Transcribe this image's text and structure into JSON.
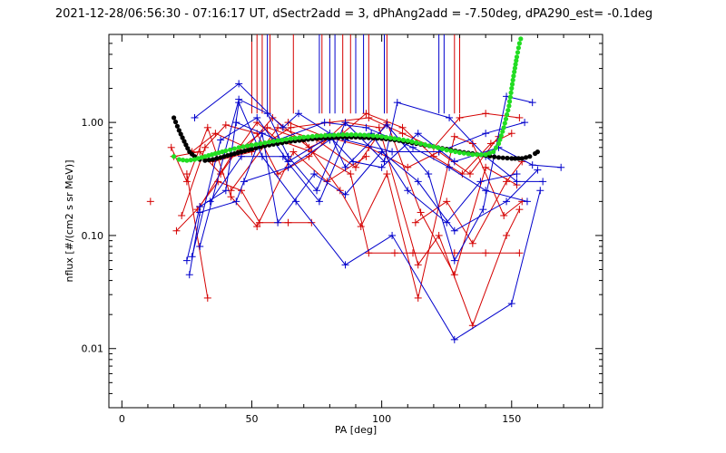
{
  "chart_data": {
    "type": "scatter",
    "title": "2021-12-28/06:56:30 - 07:16:17 UT, dSectr2add = 3, dPhAng2add = -7.50deg, dPA290_est=  -0.1deg",
    "xlabel": "PA [deg]",
    "ylabel": "nflux [#/(cm2 s sr MeV)]",
    "xlim": [
      -5,
      185
    ],
    "ylim": [
      0.003,
      6
    ],
    "yscale": "log",
    "grid": false,
    "x_ticks": [
      0,
      50,
      100,
      150
    ],
    "x_tick_labels": [
      "0",
      "50",
      "100",
      "150"
    ],
    "y_ticks": [
      0.01,
      0.1,
      1.0
    ],
    "y_tick_labels": [
      "0.01",
      "0.10",
      "1.00"
    ],
    "colors": {
      "red": "#d40000",
      "blue": "#0000cc",
      "black": "#000000",
      "green": "#22dd22"
    },
    "series": [
      {
        "color": "red",
        "style": "line",
        "points": [
          [
            19,
            0.6
          ],
          [
            25,
            0.3
          ],
          [
            33,
            0.9
          ],
          [
            42,
            0.22
          ],
          [
            52,
            0.12
          ],
          [
            66,
            0.55
          ],
          [
            79,
            0.3
          ],
          [
            94,
            0.5
          ]
        ]
      },
      {
        "color": "red",
        "style": "line",
        "points": [
          [
            21,
            0.11
          ],
          [
            29,
            0.17
          ],
          [
            37,
            0.3
          ],
          [
            46,
            0.25
          ],
          [
            53,
            0.13
          ],
          [
            64,
            0.13
          ],
          [
            73,
            0.13
          ]
        ]
      },
      {
        "color": "red",
        "style": "line",
        "points": [
          [
            20,
            0.5
          ],
          [
            30,
            0.55
          ],
          [
            38,
            0.35
          ],
          [
            52,
            1.0
          ],
          [
            60,
            0.7
          ],
          [
            73,
            0.55
          ],
          [
            88,
            0.35
          ],
          [
            95,
            0.07
          ],
          [
            105,
            0.07
          ],
          [
            112,
            0.07
          ],
          [
            128,
            0.07
          ],
          [
            140,
            0.07
          ],
          [
            153,
            0.07
          ]
        ]
      },
      {
        "color": "red",
        "style": "line",
        "points": [
          [
            23,
            0.15
          ],
          [
            32,
            0.6
          ],
          [
            40,
            0.95
          ],
          [
            52,
            0.8
          ],
          [
            60,
            0.35
          ],
          [
            72,
            0.5
          ],
          [
            86,
            1.0
          ],
          [
            99,
            0.9
          ],
          [
            114,
            0.055
          ],
          [
            122,
            0.1
          ],
          [
            135,
            0.016
          ],
          [
            148,
            0.1
          ],
          [
            153,
            0.17
          ]
        ]
      },
      {
        "color": "red",
        "style": "line",
        "points": [
          [
            25,
            0.35
          ],
          [
            33,
            0.028
          ]
        ]
      },
      {
        "color": "red",
        "style": "line",
        "points": [
          [
            27,
            0.55
          ],
          [
            36,
            0.8
          ],
          [
            48,
            0.6
          ],
          [
            58,
            1.1
          ],
          [
            72,
            0.6
          ],
          [
            85,
            0.8
          ],
          [
            94,
            1.2
          ],
          [
            108,
            0.9
          ],
          [
            120,
            0.5
          ],
          [
            131,
            0.35
          ],
          [
            142,
            0.65
          ],
          [
            150,
            0.8
          ]
        ]
      },
      {
        "color": "red",
        "style": "line",
        "points": [
          [
            30,
            0.18
          ],
          [
            42,
            0.5
          ],
          [
            56,
            0.9
          ],
          [
            70,
            0.7
          ],
          [
            84,
            0.25
          ],
          [
            92,
            0.12
          ],
          [
            102,
            0.35
          ],
          [
            114,
            0.028
          ],
          [
            128,
            0.75
          ],
          [
            135,
            0.65
          ],
          [
            147,
            0.15
          ],
          [
            154,
            0.2
          ]
        ]
      },
      {
        "color": "red",
        "style": "line",
        "points": [
          [
            35,
            0.45
          ],
          [
            50,
            0.55
          ],
          [
            65,
            0.9
          ],
          [
            80,
            1.0
          ],
          [
            95,
            1.1
          ],
          [
            108,
            0.8
          ],
          [
            120,
            0.6
          ],
          [
            130,
            1.1
          ],
          [
            140,
            1.2
          ],
          [
            153,
            1.1
          ]
        ]
      },
      {
        "color": "red",
        "style": "line",
        "points": [
          [
            113,
            0.13
          ],
          [
            125,
            0.2
          ],
          [
            135,
            0.085
          ],
          [
            148,
            0.3
          ],
          [
            154,
            0.45
          ]
        ]
      },
      {
        "color": "red",
        "style": "line",
        "points": [
          [
            42,
            0.25
          ],
          [
            60,
            0.9
          ],
          [
            75,
            0.7
          ],
          [
            90,
            0.4
          ],
          [
            102,
            1.0
          ],
          [
            115,
            0.16
          ],
          [
            128,
            0.045
          ],
          [
            140,
            0.4
          ],
          [
            152,
            0.28
          ]
        ]
      },
      {
        "color": "red",
        "style": "line",
        "points": [
          [
            64,
            1.0
          ],
          [
            78,
            0.75
          ],
          [
            95,
            0.6
          ],
          [
            110,
            0.4
          ],
          [
            122,
            0.55
          ],
          [
            134,
            0.35
          ],
          [
            145,
            0.75
          ]
        ]
      },
      {
        "color": "blue",
        "style": "line",
        "points": [
          [
            25,
            0.06
          ],
          [
            30,
            0.18
          ],
          [
            40,
            0.25
          ],
          [
            45,
            1.5
          ],
          [
            54,
            0.5
          ],
          [
            67,
            0.2
          ],
          [
            86,
            0.055
          ],
          [
            104,
            0.1
          ],
          [
            128,
            0.012
          ],
          [
            150,
            0.025
          ],
          [
            161,
            0.25
          ]
        ]
      },
      {
        "color": "blue",
        "style": "line",
        "points": [
          [
            26,
            0.045
          ],
          [
            30,
            0.16
          ],
          [
            44,
            0.2
          ],
          [
            54,
            0.8
          ],
          [
            60,
            0.13
          ],
          [
            74,
            0.35
          ],
          [
            86,
            0.23
          ],
          [
            100,
            0.55
          ],
          [
            114,
            0.3
          ],
          [
            128,
            0.11
          ],
          [
            148,
            0.2
          ],
          [
            160,
            0.38
          ]
        ]
      },
      {
        "color": "blue",
        "style": "line",
        "points": [
          [
            28,
            1.1
          ],
          [
            45,
            2.2
          ],
          [
            62,
            0.9
          ],
          [
            68,
            1.2
          ],
          [
            80,
            0.8
          ],
          [
            86,
            0.4
          ],
          [
            102,
            0.95
          ],
          [
            118,
            0.35
          ],
          [
            128,
            0.06
          ],
          [
            139,
            0.17
          ],
          [
            148,
            1.7
          ],
          [
            158,
            1.5
          ]
        ]
      },
      {
        "color": "blue",
        "style": "line",
        "points": [
          [
            30,
            0.08
          ],
          [
            45,
            1.6
          ],
          [
            56,
            1.2
          ],
          [
            64,
            0.5
          ],
          [
            75,
            0.25
          ],
          [
            86,
            1.0
          ],
          [
            101,
            0.45
          ],
          [
            106,
            1.5
          ],
          [
            126,
            1.1
          ],
          [
            140,
            0.5
          ],
          [
            152,
            0.3
          ],
          [
            162,
            0.3
          ]
        ]
      },
      {
        "color": "blue",
        "style": "line",
        "points": [
          [
            27,
            0.065
          ],
          [
            38,
            0.7
          ],
          [
            52,
            1.1
          ],
          [
            64,
            0.45
          ],
          [
            80,
            0.75
          ],
          [
            89,
            0.45
          ],
          [
            100,
            0.4
          ],
          [
            114,
            0.8
          ],
          [
            128,
            0.45
          ],
          [
            145,
            0.6
          ],
          [
            158,
            0.42
          ],
          [
            169,
            0.4
          ]
        ]
      },
      {
        "color": "blue",
        "style": "line",
        "points": [
          [
            34,
            0.2
          ],
          [
            46,
            0.5
          ],
          [
            62,
            0.5
          ],
          [
            76,
            0.2
          ],
          [
            86,
            0.7
          ],
          [
            104,
            0.55
          ],
          [
            122,
            0.55
          ],
          [
            140,
            0.8
          ],
          [
            155,
            1.0
          ]
        ]
      },
      {
        "color": "blue",
        "style": "line",
        "points": [
          [
            44,
            1.0
          ],
          [
            60,
            0.7
          ],
          [
            78,
            1.0
          ],
          [
            94,
            0.9
          ],
          [
            112,
            0.6
          ],
          [
            126,
            0.4
          ],
          [
            140,
            0.25
          ],
          [
            156,
            0.2
          ]
        ]
      },
      {
        "color": "blue",
        "style": "line",
        "points": [
          [
            47,
            0.3
          ],
          [
            64,
            0.4
          ],
          [
            80,
            0.7
          ],
          [
            96,
            0.8
          ],
          [
            110,
            0.25
          ],
          [
            125,
            0.13
          ],
          [
            138,
            0.3
          ],
          [
            152,
            0.35
          ]
        ]
      },
      {
        "color": "black",
        "style": "dots",
        "points": [
          [
            20,
            1.1
          ],
          [
            22,
            0.85
          ],
          [
            24,
            0.68
          ],
          [
            26,
            0.55
          ],
          [
            28,
            0.5
          ],
          [
            30,
            0.47
          ],
          [
            32,
            0.46
          ],
          [
            35,
            0.47
          ],
          [
            38,
            0.49
          ],
          [
            42,
            0.52
          ],
          [
            46,
            0.55
          ],
          [
            50,
            0.58
          ],
          [
            55,
            0.62
          ],
          [
            60,
            0.65
          ],
          [
            65,
            0.68
          ],
          [
            70,
            0.7
          ],
          [
            75,
            0.72
          ],
          [
            80,
            0.73
          ],
          [
            85,
            0.74
          ],
          [
            90,
            0.74
          ],
          [
            95,
            0.73
          ],
          [
            100,
            0.72
          ],
          [
            105,
            0.7
          ],
          [
            110,
            0.67
          ],
          [
            115,
            0.64
          ],
          [
            120,
            0.61
          ],
          [
            125,
            0.58
          ],
          [
            130,
            0.55
          ],
          [
            135,
            0.53
          ],
          [
            140,
            0.51
          ],
          [
            145,
            0.49
          ],
          [
            150,
            0.48
          ],
          [
            154,
            0.48
          ],
          [
            157,
            0.5
          ],
          [
            159,
            0.53
          ],
          [
            161,
            0.57
          ]
        ]
      },
      {
        "color": "green",
        "style": "dots",
        "points": [
          [
            20,
            0.5
          ],
          [
            22,
            0.47
          ],
          [
            25,
            0.46
          ],
          [
            28,
            0.47
          ],
          [
            32,
            0.5
          ],
          [
            36,
            0.53
          ],
          [
            40,
            0.56
          ],
          [
            45,
            0.6
          ],
          [
            50,
            0.63
          ],
          [
            55,
            0.66
          ],
          [
            60,
            0.69
          ],
          [
            65,
            0.72
          ],
          [
            70,
            0.74
          ],
          [
            75,
            0.76
          ],
          [
            80,
            0.77
          ],
          [
            85,
            0.78
          ],
          [
            90,
            0.78
          ],
          [
            95,
            0.77
          ],
          [
            100,
            0.75
          ],
          [
            105,
            0.72
          ],
          [
            110,
            0.69
          ],
          [
            115,
            0.65
          ],
          [
            120,
            0.61
          ],
          [
            125,
            0.57
          ],
          [
            130,
            0.54
          ],
          [
            135,
            0.52
          ],
          [
            140,
            0.52
          ],
          [
            143,
            0.55
          ],
          [
            145,
            0.65
          ],
          [
            147,
            0.9
          ],
          [
            149,
            1.4
          ],
          [
            150,
            2.0
          ],
          [
            151,
            2.8
          ],
          [
            152,
            3.8
          ],
          [
            153,
            5.0
          ],
          [
            154,
            6.0
          ]
        ]
      }
    ],
    "vertical_lines": [
      {
        "x": 50,
        "y0": 1.2,
        "y1": 6,
        "color": "red"
      },
      {
        "x": 52,
        "y0": 1.2,
        "y1": 6,
        "color": "red"
      },
      {
        "x": 54,
        "y0": 1.2,
        "y1": 6,
        "color": "red"
      },
      {
        "x": 56,
        "y0": 1.2,
        "y1": 6,
        "color": "blue"
      },
      {
        "x": 57,
        "y0": 1.2,
        "y1": 6,
        "color": "red"
      },
      {
        "x": 66,
        "y0": 1.2,
        "y1": 6,
        "color": "red"
      },
      {
        "x": 76,
        "y0": 1.2,
        "y1": 6,
        "color": "blue"
      },
      {
        "x": 77,
        "y0": 1.2,
        "y1": 6,
        "color": "red"
      },
      {
        "x": 80,
        "y0": 1.2,
        "y1": 6,
        "color": "blue"
      },
      {
        "x": 82,
        "y0": 1.2,
        "y1": 6,
        "color": "blue"
      },
      {
        "x": 85,
        "y0": 1.2,
        "y1": 6,
        "color": "red"
      },
      {
        "x": 88,
        "y0": 1.2,
        "y1": 6,
        "color": "red"
      },
      {
        "x": 90,
        "y0": 1.2,
        "y1": 6,
        "color": "blue"
      },
      {
        "x": 93,
        "y0": 1.2,
        "y1": 6,
        "color": "blue"
      },
      {
        "x": 95,
        "y0": 1.2,
        "y1": 6,
        "color": "red"
      },
      {
        "x": 101,
        "y0": 1.2,
        "y1": 6,
        "color": "blue"
      },
      {
        "x": 102,
        "y0": 1.2,
        "y1": 6,
        "color": "red"
      },
      {
        "x": 122,
        "y0": 1.2,
        "y1": 6,
        "color": "blue"
      },
      {
        "x": 124,
        "y0": 1.2,
        "y1": 6,
        "color": "blue"
      },
      {
        "x": 128,
        "y0": 1.2,
        "y1": 6,
        "color": "red"
      },
      {
        "x": 130,
        "y0": 1.2,
        "y1": 6,
        "color": "red"
      }
    ],
    "extra_markers": [
      {
        "x": 11,
        "y": 0.2,
        "color": "red"
      }
    ]
  }
}
